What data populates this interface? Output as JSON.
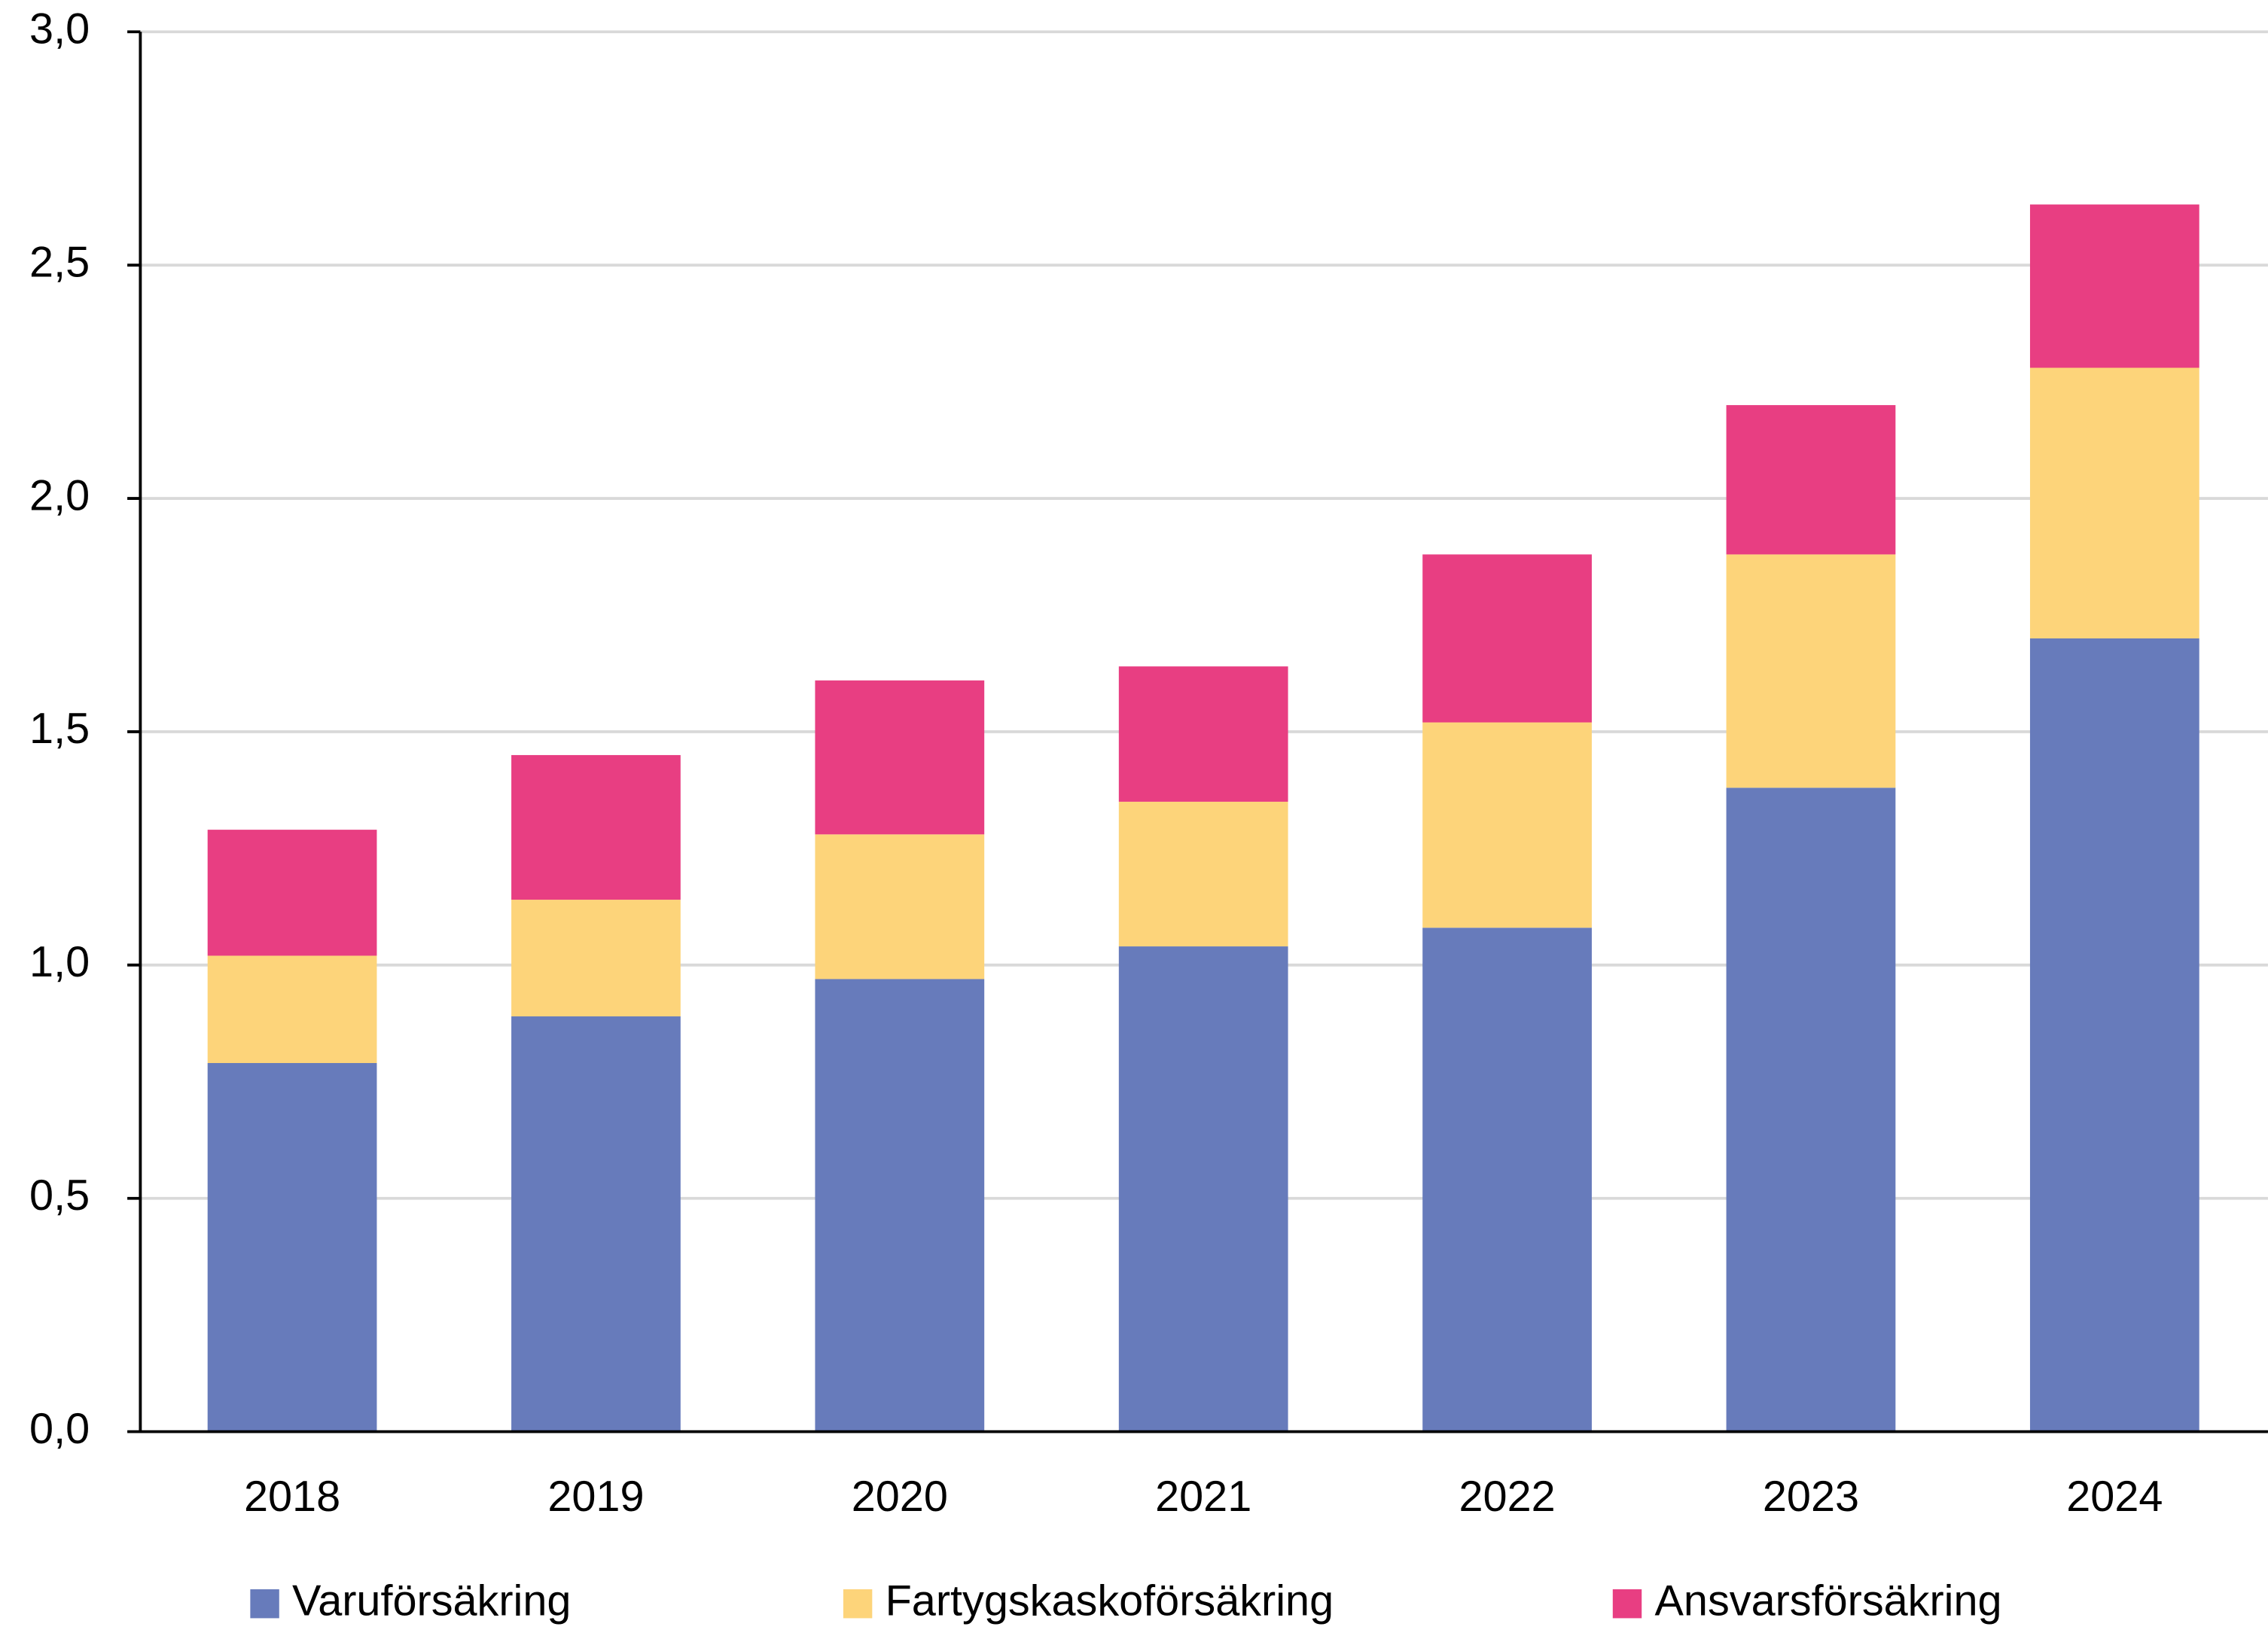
{
  "chart_data": {
    "type": "bar",
    "stacked": true,
    "categories": [
      "2018",
      "2019",
      "2020",
      "2021",
      "2022",
      "2023",
      "2024"
    ],
    "series": [
      {
        "name": "Varuförsäkring",
        "color": "#677bbb",
        "values": [
          0.79,
          0.89,
          0.97,
          1.04,
          1.08,
          1.38,
          1.7
        ]
      },
      {
        "name": "Fartygskaskoförsäkring",
        "color": "#fdd47a",
        "values": [
          0.23,
          0.25,
          0.31,
          0.31,
          0.44,
          0.5,
          0.58
        ]
      },
      {
        "name": "Ansvarsförsäkring",
        "color": "#e83e82",
        "values": [
          0.27,
          0.31,
          0.33,
          0.29,
          0.36,
          0.32,
          0.35
        ]
      }
    ],
    "ylim": [
      0,
      3
    ],
    "yticks": [
      {
        "value": 0,
        "label": "0,0"
      },
      {
        "value": 0.5,
        "label": "0,5"
      },
      {
        "value": 1,
        "label": "1,0"
      },
      {
        "value": 1.5,
        "label": "1,5"
      },
      {
        "value": 2,
        "label": "2,0"
      },
      {
        "value": 2.5,
        "label": "2,5"
      },
      {
        "value": 3,
        "label": "3,0"
      }
    ],
    "grid": true,
    "legend": "bottom"
  }
}
